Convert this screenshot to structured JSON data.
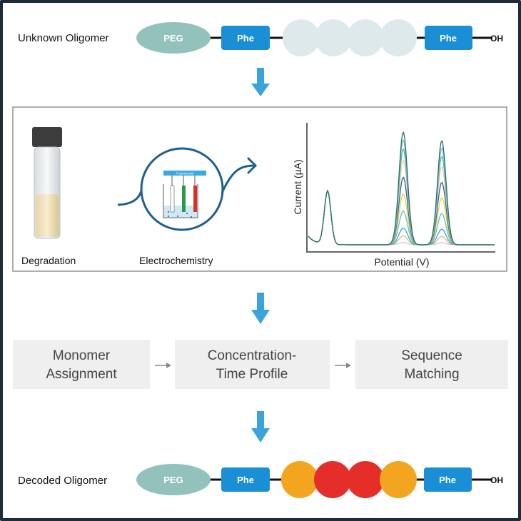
{
  "top_row": {
    "label": "Unknown Oligomer",
    "peg": "PEG",
    "phe_left": "Phe",
    "phe_right": "Phe",
    "end": "OH"
  },
  "bottom_row": {
    "label": "Decoded Oligomer",
    "peg": "PEG",
    "phe_left": "Phe",
    "phe_right": "Phe",
    "end": "OH"
  },
  "panel": {
    "degradation": "Degradation",
    "electrochemistry": "Electrochemistry",
    "potentiostat": "Potentiostat",
    "chart": {
      "ylabel": "Current (µA)",
      "xlabel": "Potential (V)"
    }
  },
  "steps": [
    "Monomer Assignment",
    "Concentration-Time Profile",
    "Sequence Matching"
  ],
  "step_lines": [
    [
      "Monomer",
      "Assignment"
    ],
    [
      "Concentration-",
      "Time Profile"
    ],
    [
      "Sequence",
      "Matching"
    ]
  ],
  "colors": {
    "frame": "#1e2b39",
    "phe": "#1a8fd6",
    "peg": "#93c2bd",
    "unknown": "#dde9eb",
    "orange": "#f4a51f",
    "red": "#e52d2a",
    "arrow": "#3aa3dc",
    "step_box": "#efefef"
  },
  "chart_data": {
    "type": "line",
    "xlabel": "Potential (V)",
    "ylabel": "Current (µA)",
    "grid": false
  }
}
